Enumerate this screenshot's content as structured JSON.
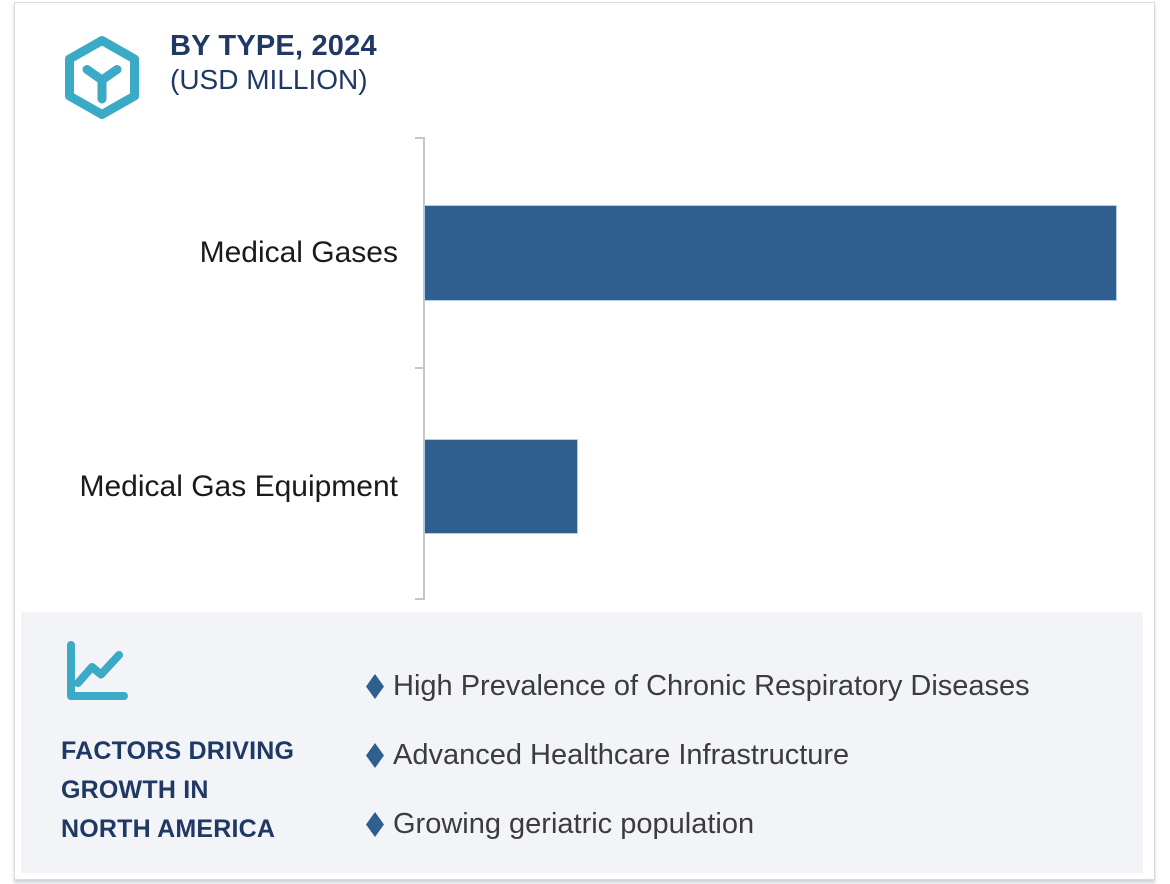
{
  "header": {
    "title": "BY TYPE, 2024",
    "subtitle": "(USD MILLION)"
  },
  "chart_data": {
    "type": "bar",
    "orientation": "horizontal",
    "title": "BY TYPE, 2024 (USD MILLION)",
    "categories": [
      "Medical Gases",
      "Medical Gas Equipment"
    ],
    "values": [
      100,
      22
    ],
    "value_note": "no numeric axis or data labels shown; values are relative bar lengths",
    "xlim": [
      0,
      100
    ],
    "xlabel": "",
    "ylabel": "",
    "grid": false,
    "legend": false,
    "bar_color": "#2e5f8e",
    "axis_color": "#c6c6c6"
  },
  "factors_panel": {
    "heading_lines": [
      "FACTORS DRIVING",
      "GROWTH IN",
      "NORTH AMERICA"
    ],
    "bullets": [
      "High Prevalence of Chronic Respiratory Diseases",
      "Advanced Healthcare Infrastructure",
      "Growing geriatric population"
    ],
    "bullet_marker": "diamond",
    "bullet_color": "#2e5f8e",
    "background": "#f2f4f8"
  },
  "colors": {
    "accent_teal": "#3baac6",
    "navy": "#1f3864",
    "bar_blue": "#2e5f8e",
    "panel_bg": "#f2f4f8",
    "card_border": "#d9dade",
    "label_text": "#1a1a1a",
    "bullet_text": "#3c3c3c"
  }
}
